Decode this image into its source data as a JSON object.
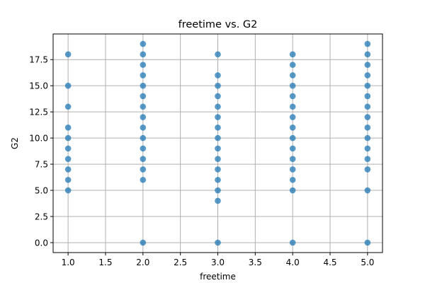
{
  "chart_data": {
    "type": "scatter",
    "title": "freetime vs. G2",
    "xlabel": "freetime",
    "ylabel": "G2",
    "xlim": [
      0.8,
      5.2
    ],
    "ylim": [
      -0.95,
      19.95
    ],
    "xticks": [
      1.0,
      1.5,
      2.0,
      2.5,
      3.0,
      3.5,
      4.0,
      4.5,
      5.0
    ],
    "xtick_labels": [
      "1.0",
      "1.5",
      "2.0",
      "2.5",
      "3.0",
      "3.5",
      "4.0",
      "4.5",
      "5.0"
    ],
    "yticks": [
      0.0,
      2.5,
      5.0,
      7.5,
      10.0,
      12.5,
      15.0,
      17.5
    ],
    "ytick_labels": [
      "0.0",
      "2.5",
      "5.0",
      "7.5",
      "10.0",
      "12.5",
      "15.0",
      "17.5"
    ],
    "grid": true,
    "marker_color": "#1f77b4",
    "series": [
      {
        "points": [
          [
            1,
            5
          ],
          [
            1,
            6
          ],
          [
            1,
            7
          ],
          [
            1,
            8
          ],
          [
            1,
            9
          ],
          [
            1,
            10
          ],
          [
            1,
            11
          ],
          [
            1,
            13
          ],
          [
            1,
            15
          ],
          [
            1,
            18
          ],
          [
            2,
            0
          ],
          [
            2,
            6
          ],
          [
            2,
            7
          ],
          [
            2,
            8
          ],
          [
            2,
            9
          ],
          [
            2,
            10
          ],
          [
            2,
            11
          ],
          [
            2,
            12
          ],
          [
            2,
            13
          ],
          [
            2,
            14
          ],
          [
            2,
            15
          ],
          [
            2,
            16
          ],
          [
            2,
            17
          ],
          [
            2,
            18
          ],
          [
            2,
            19
          ],
          [
            3,
            0
          ],
          [
            3,
            4
          ],
          [
            3,
            5
          ],
          [
            3,
            6
          ],
          [
            3,
            7
          ],
          [
            3,
            8
          ],
          [
            3,
            9
          ],
          [
            3,
            10
          ],
          [
            3,
            11
          ],
          [
            3,
            12
          ],
          [
            3,
            13
          ],
          [
            3,
            14
          ],
          [
            3,
            15
          ],
          [
            3,
            16
          ],
          [
            3,
            18
          ],
          [
            4,
            0
          ],
          [
            4,
            5
          ],
          [
            4,
            6
          ],
          [
            4,
            7
          ],
          [
            4,
            8
          ],
          [
            4,
            9
          ],
          [
            4,
            10
          ],
          [
            4,
            11
          ],
          [
            4,
            12
          ],
          [
            4,
            13
          ],
          [
            4,
            14
          ],
          [
            4,
            15
          ],
          [
            4,
            16
          ],
          [
            4,
            17
          ],
          [
            4,
            18
          ],
          [
            5,
            0
          ],
          [
            5,
            5
          ],
          [
            5,
            7
          ],
          [
            5,
            8
          ],
          [
            5,
            9
          ],
          [
            5,
            10
          ],
          [
            5,
            11
          ],
          [
            5,
            12
          ],
          [
            5,
            13
          ],
          [
            5,
            14
          ],
          [
            5,
            15
          ],
          [
            5,
            16
          ],
          [
            5,
            17
          ],
          [
            5,
            18
          ],
          [
            5,
            19
          ]
        ]
      }
    ]
  }
}
